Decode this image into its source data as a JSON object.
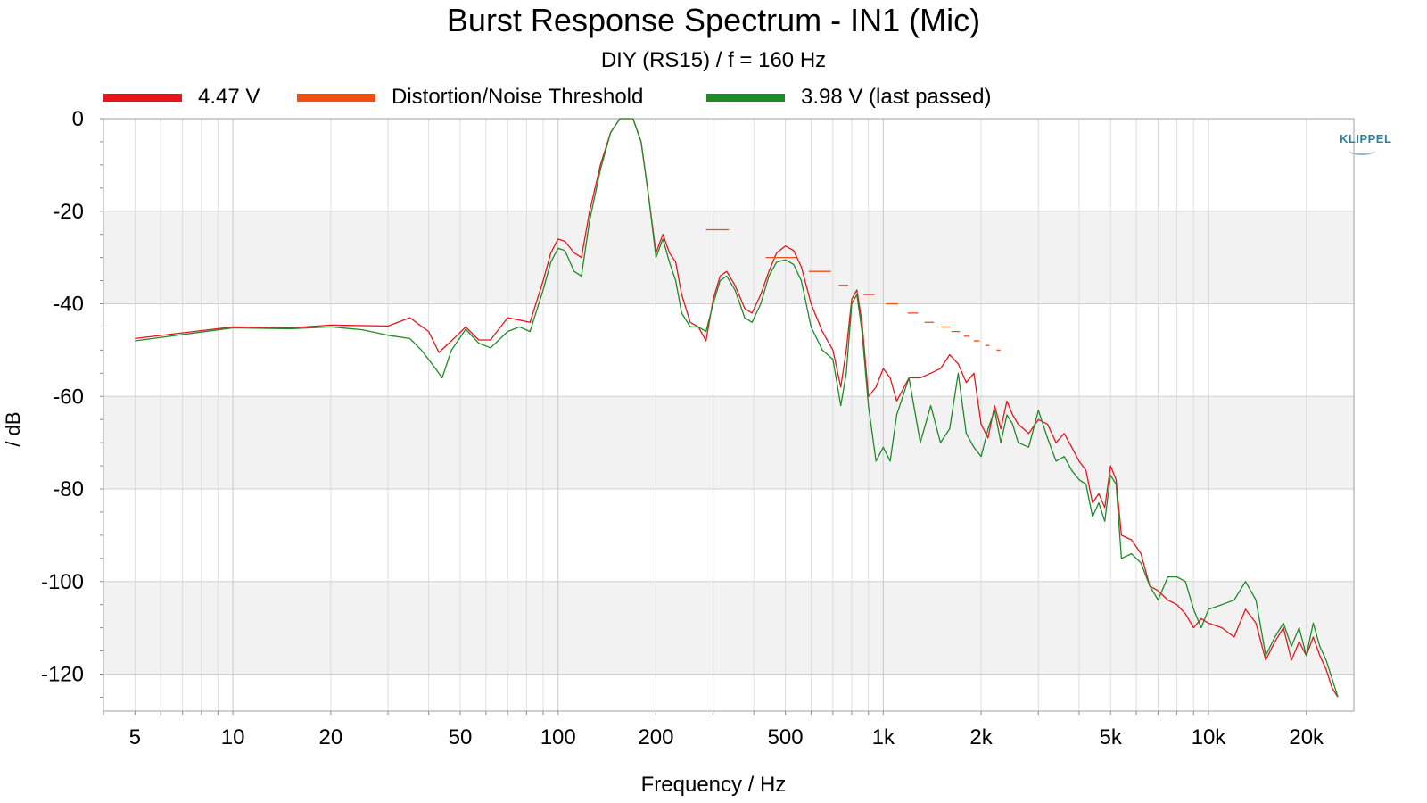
{
  "chart_data": {
    "type": "line",
    "title": "Burst Response Spectrum - IN1 (Mic)",
    "subtitle": "DIY (RS15) / f = 160 Hz",
    "xlabel": "Frequency / Hz",
    "ylabel": "/ dB",
    "xscale": "log",
    "xlim": [
      4,
      28000
    ],
    "ylim": [
      -128,
      0
    ],
    "grid": true,
    "legend_position": "top",
    "x_ticks": [
      5,
      10,
      20,
      50,
      100,
      200,
      500,
      1000,
      2000,
      5000,
      10000,
      20000
    ],
    "x_tick_labels": [
      "5",
      "10",
      "20",
      "50",
      "100",
      "200",
      "500",
      "1k",
      "2k",
      "5k",
      "10k",
      "20k"
    ],
    "y_ticks": [
      0,
      -20,
      -40,
      -60,
      -80,
      -100,
      -120
    ],
    "y_tick_labels": [
      "0",
      "-20",
      "-40",
      "-60",
      "-80",
      "-100",
      "-120"
    ],
    "series": [
      {
        "name": "4.47 V",
        "color": "#e8141c",
        "style": "line",
        "points": [
          [
            5,
            -47.5
          ],
          [
            10,
            -45
          ],
          [
            15,
            -45.2
          ],
          [
            20,
            -44.6
          ],
          [
            30,
            -44.8
          ],
          [
            35,
            -43
          ],
          [
            40,
            -46
          ],
          [
            43,
            -50.5
          ],
          [
            47,
            -48
          ],
          [
            52,
            -45
          ],
          [
            57,
            -47.8
          ],
          [
            62,
            -47.8
          ],
          [
            70,
            -43
          ],
          [
            76,
            -43.5
          ],
          [
            82,
            -44
          ],
          [
            90,
            -35
          ],
          [
            95,
            -29
          ],
          [
            100,
            -26
          ],
          [
            105,
            -26.5
          ],
          [
            112,
            -29
          ],
          [
            118,
            -30
          ],
          [
            125,
            -20
          ],
          [
            135,
            -10
          ],
          [
            145,
            -3
          ],
          [
            155,
            0
          ],
          [
            170,
            0
          ],
          [
            180,
            -5
          ],
          [
            190,
            -17
          ],
          [
            200,
            -29
          ],
          [
            210,
            -25
          ],
          [
            220,
            -29
          ],
          [
            230,
            -31
          ],
          [
            240,
            -38
          ],
          [
            255,
            -44
          ],
          [
            270,
            -45
          ],
          [
            285,
            -48
          ],
          [
            300,
            -39
          ],
          [
            315,
            -34
          ],
          [
            330,
            -33
          ],
          [
            350,
            -36
          ],
          [
            375,
            -41
          ],
          [
            395,
            -42
          ],
          [
            420,
            -38
          ],
          [
            445,
            -33
          ],
          [
            470,
            -29
          ],
          [
            500,
            -27.5
          ],
          [
            530,
            -28.5
          ],
          [
            560,
            -32
          ],
          [
            600,
            -40
          ],
          [
            650,
            -46
          ],
          [
            700,
            -50
          ],
          [
            740,
            -58
          ],
          [
            770,
            -50
          ],
          [
            800,
            -39
          ],
          [
            830,
            -37
          ],
          [
            860,
            -44
          ],
          [
            900,
            -60
          ],
          [
            950,
            -58
          ],
          [
            1000,
            -54
          ],
          [
            1050,
            -56
          ],
          [
            1100,
            -61
          ],
          [
            1200,
            -56
          ],
          [
            1300,
            -56
          ],
          [
            1400,
            -55
          ],
          [
            1500,
            -54
          ],
          [
            1600,
            -51
          ],
          [
            1700,
            -53
          ],
          [
            1800,
            -57
          ],
          [
            1900,
            -55
          ],
          [
            2000,
            -66
          ],
          [
            2100,
            -69
          ],
          [
            2200,
            -62
          ],
          [
            2300,
            -67
          ],
          [
            2400,
            -61
          ],
          [
            2500,
            -64
          ],
          [
            2600,
            -66
          ],
          [
            2800,
            -68
          ],
          [
            3000,
            -65
          ],
          [
            3200,
            -66
          ],
          [
            3400,
            -70
          ],
          [
            3600,
            -68
          ],
          [
            3800,
            -71
          ],
          [
            4000,
            -74
          ],
          [
            4200,
            -76
          ],
          [
            4400,
            -83
          ],
          [
            4600,
            -81
          ],
          [
            4800,
            -84
          ],
          [
            5000,
            -75
          ],
          [
            5200,
            -78
          ],
          [
            5400,
            -90
          ],
          [
            5800,
            -91
          ],
          [
            6200,
            -94
          ],
          [
            6600,
            -101
          ],
          [
            7000,
            -102
          ],
          [
            7500,
            -104
          ],
          [
            8000,
            -105
          ],
          [
            8500,
            -107
          ],
          [
            9000,
            -110
          ],
          [
            9500,
            -108
          ],
          [
            10000,
            -109
          ],
          [
            11000,
            -110
          ],
          [
            12000,
            -112
          ],
          [
            13000,
            -106
          ],
          [
            14000,
            -109
          ],
          [
            15000,
            -117
          ],
          [
            16000,
            -113
          ],
          [
            17000,
            -110
          ],
          [
            18000,
            -117
          ],
          [
            19000,
            -113
          ],
          [
            20000,
            -116
          ],
          [
            21000,
            -112
          ],
          [
            22000,
            -116
          ],
          [
            23000,
            -119
          ],
          [
            24000,
            -123
          ],
          [
            25000,
            -125
          ]
        ]
      },
      {
        "name": "Distortion/Noise Threshold",
        "color": "#f04e14",
        "style": "steps",
        "segments": [
          [
            285,
            335,
            -24
          ],
          [
            435,
            540,
            -30
          ],
          [
            590,
            690,
            -33
          ],
          [
            730,
            780,
            -36
          ],
          [
            870,
            940,
            -38
          ],
          [
            1020,
            1110,
            -40
          ],
          [
            1190,
            1280,
            -42
          ],
          [
            1340,
            1430,
            -44
          ],
          [
            1500,
            1600,
            -45
          ],
          [
            1620,
            1720,
            -46
          ],
          [
            1770,
            1840,
            -47
          ],
          [
            1900,
            1980,
            -48
          ],
          [
            2060,
            2120,
            -49
          ],
          [
            2230,
            2290,
            -50
          ]
        ]
      },
      {
        "name": "3.98 V (last passed)",
        "color": "#1e8a28",
        "style": "line",
        "points": [
          [
            5,
            -48
          ],
          [
            10,
            -45.2
          ],
          [
            15,
            -45.4
          ],
          [
            20,
            -45
          ],
          [
            25,
            -45.6
          ],
          [
            30,
            -46.8
          ],
          [
            35,
            -47.5
          ],
          [
            38,
            -50
          ],
          [
            42,
            -54
          ],
          [
            44,
            -56
          ],
          [
            47,
            -50
          ],
          [
            52,
            -45.5
          ],
          [
            57,
            -48.5
          ],
          [
            62,
            -49.5
          ],
          [
            70,
            -46
          ],
          [
            76,
            -45
          ],
          [
            82,
            -46
          ],
          [
            90,
            -37
          ],
          [
            95,
            -31
          ],
          [
            100,
            -28
          ],
          [
            105,
            -28.5
          ],
          [
            112,
            -33
          ],
          [
            118,
            -34
          ],
          [
            125,
            -22
          ],
          [
            135,
            -11
          ],
          [
            145,
            -3
          ],
          [
            155,
            0
          ],
          [
            170,
            0
          ],
          [
            180,
            -5
          ],
          [
            190,
            -17
          ],
          [
            200,
            -30
          ],
          [
            210,
            -26
          ],
          [
            220,
            -31
          ],
          [
            230,
            -35
          ],
          [
            240,
            -42
          ],
          [
            255,
            -45
          ],
          [
            270,
            -45
          ],
          [
            285,
            -46
          ],
          [
            300,
            -40
          ],
          [
            315,
            -35
          ],
          [
            330,
            -34
          ],
          [
            350,
            -37
          ],
          [
            375,
            -43
          ],
          [
            395,
            -44
          ],
          [
            420,
            -40
          ],
          [
            445,
            -34
          ],
          [
            470,
            -31
          ],
          [
            500,
            -30.5
          ],
          [
            530,
            -31.5
          ],
          [
            560,
            -35
          ],
          [
            600,
            -45
          ],
          [
            650,
            -50
          ],
          [
            700,
            -52
          ],
          [
            740,
            -62
          ],
          [
            770,
            -55
          ],
          [
            800,
            -40
          ],
          [
            830,
            -38
          ],
          [
            860,
            -46
          ],
          [
            900,
            -62
          ],
          [
            950,
            -74
          ],
          [
            1000,
            -71
          ],
          [
            1050,
            -74
          ],
          [
            1100,
            -64
          ],
          [
            1200,
            -56
          ],
          [
            1300,
            -70
          ],
          [
            1400,
            -62
          ],
          [
            1500,
            -70
          ],
          [
            1600,
            -67
          ],
          [
            1700,
            -55
          ],
          [
            1800,
            -68
          ],
          [
            1900,
            -71
          ],
          [
            2000,
            -73
          ],
          [
            2100,
            -67
          ],
          [
            2200,
            -63
          ],
          [
            2300,
            -70
          ],
          [
            2400,
            -64
          ],
          [
            2500,
            -66
          ],
          [
            2600,
            -70
          ],
          [
            2800,
            -71
          ],
          [
            3000,
            -63
          ],
          [
            3200,
            -69
          ],
          [
            3400,
            -74
          ],
          [
            3600,
            -73
          ],
          [
            3800,
            -76
          ],
          [
            4000,
            -78
          ],
          [
            4200,
            -79
          ],
          [
            4400,
            -86
          ],
          [
            4600,
            -83
          ],
          [
            4800,
            -87
          ],
          [
            5000,
            -77
          ],
          [
            5200,
            -79
          ],
          [
            5400,
            -95
          ],
          [
            5800,
            -94
          ],
          [
            6200,
            -96
          ],
          [
            6600,
            -101
          ],
          [
            7000,
            -104
          ],
          [
            7500,
            -99
          ],
          [
            8000,
            -99
          ],
          [
            8500,
            -100
          ],
          [
            9000,
            -106
          ],
          [
            9500,
            -110
          ],
          [
            10000,
            -106
          ],
          [
            11000,
            -105
          ],
          [
            12000,
            -104
          ],
          [
            13000,
            -100
          ],
          [
            14000,
            -104
          ],
          [
            15000,
            -116
          ],
          [
            16000,
            -112
          ],
          [
            17000,
            -109
          ],
          [
            18000,
            -114
          ],
          [
            19000,
            -110
          ],
          [
            20000,
            -116
          ],
          [
            21000,
            -109
          ],
          [
            22000,
            -114
          ],
          [
            23000,
            -117
          ],
          [
            24000,
            -121
          ],
          [
            25000,
            -125
          ]
        ]
      }
    ],
    "watermark": "KLIPPEL"
  }
}
